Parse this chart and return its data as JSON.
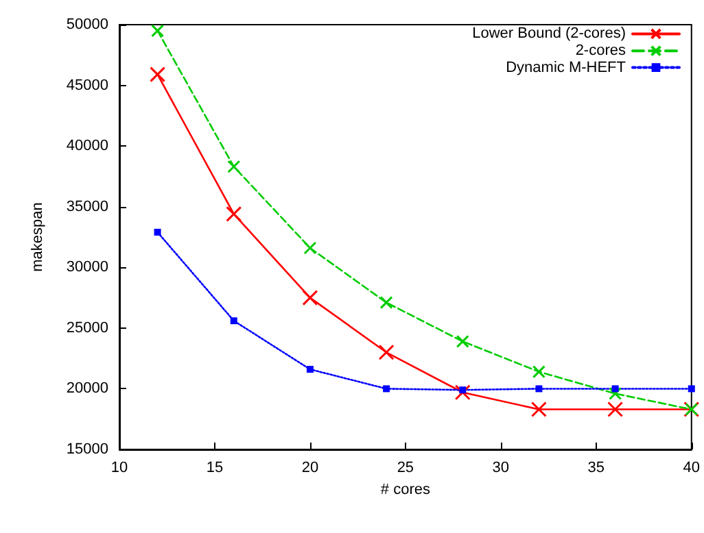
{
  "chart_data": {
    "type": "line",
    "xlabel": "# cores",
    "ylabel": "makespan",
    "x": [
      12,
      16,
      20,
      24,
      28,
      32,
      36,
      40
    ],
    "series": [
      {
        "name": "Lower Bound (2-cores)",
        "color": "#ff0000",
        "marker": "cross",
        "line_style": "solid",
        "values": [
          45900,
          34400,
          27500,
          23000,
          19700,
          18300,
          18300,
          18300
        ]
      },
      {
        "name": "2-cores",
        "color": "#00cc00",
        "marker": "cross",
        "line_style": "dashed",
        "values": [
          49500,
          38300,
          31600,
          27100,
          23900,
          21400,
          19600,
          18300
        ]
      },
      {
        "name": "Dynamic M-HEFT",
        "color": "#0000ff",
        "marker": "square",
        "line_style": "dotted",
        "values": [
          32900,
          25600,
          21600,
          20000,
          19900,
          20000,
          20000,
          20000
        ]
      }
    ],
    "xlim": [
      10,
      40
    ],
    "xticks": [
      10,
      15,
      20,
      25,
      30,
      35,
      40
    ],
    "ylim": [
      15000,
      50000
    ],
    "yticks": [
      15000,
      20000,
      25000,
      30000,
      35000,
      40000,
      45000,
      50000
    ],
    "grid": false,
    "legend": "top right"
  }
}
